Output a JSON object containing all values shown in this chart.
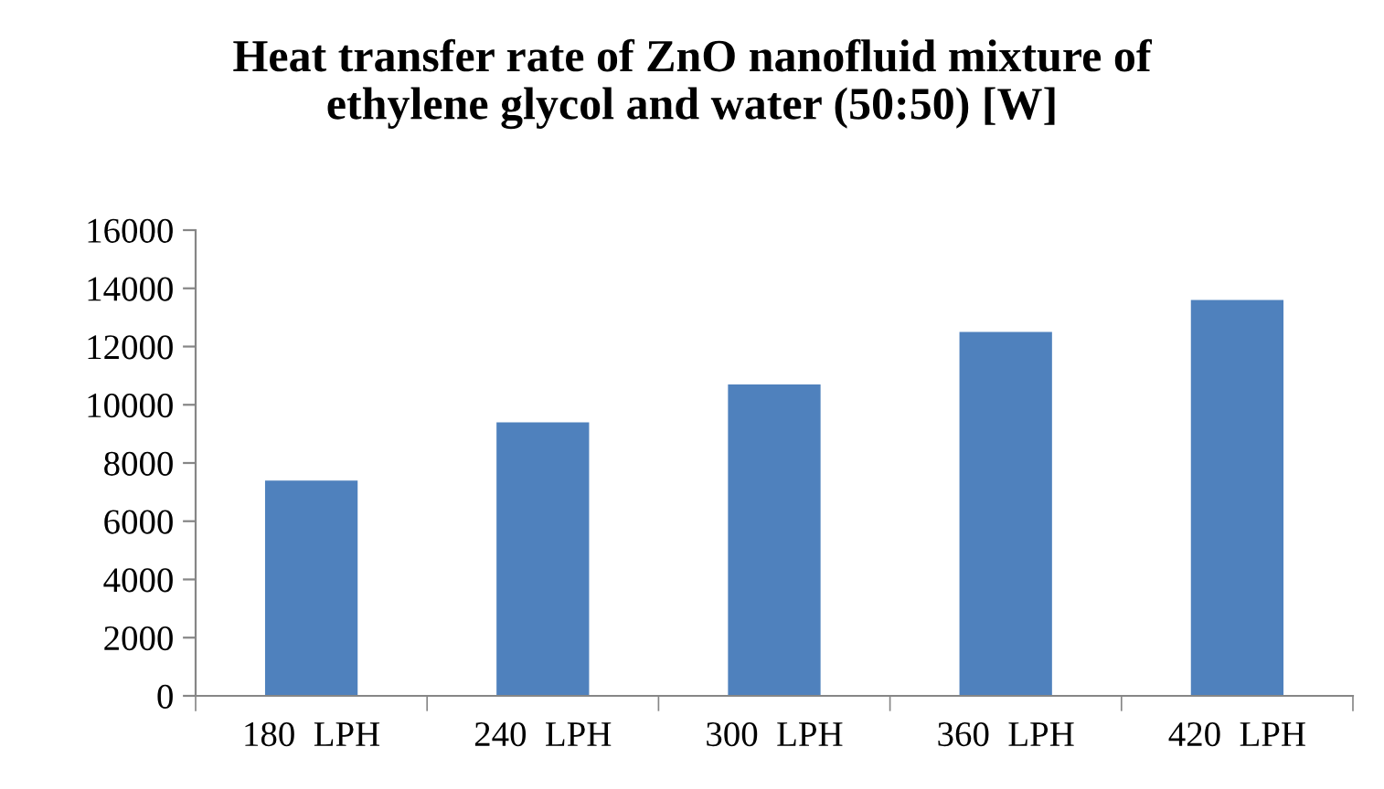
{
  "chart_data": {
    "type": "bar",
    "title": "Heat transfer rate of ZnO nanofluid mixture of\nethylene glycol and water (50:50) [W]",
    "categories": [
      "180  LPH",
      "240  LPH",
      "300  LPH",
      "360  LPH",
      "420  LPH"
    ],
    "values": [
      7400,
      9400,
      10700,
      12500,
      13600
    ],
    "color": "#4f81bd",
    "ylim": [
      0,
      16000
    ],
    "yticks": [
      0,
      2000,
      4000,
      6000,
      8000,
      10000,
      12000,
      14000,
      16000
    ],
    "grid": false
  }
}
